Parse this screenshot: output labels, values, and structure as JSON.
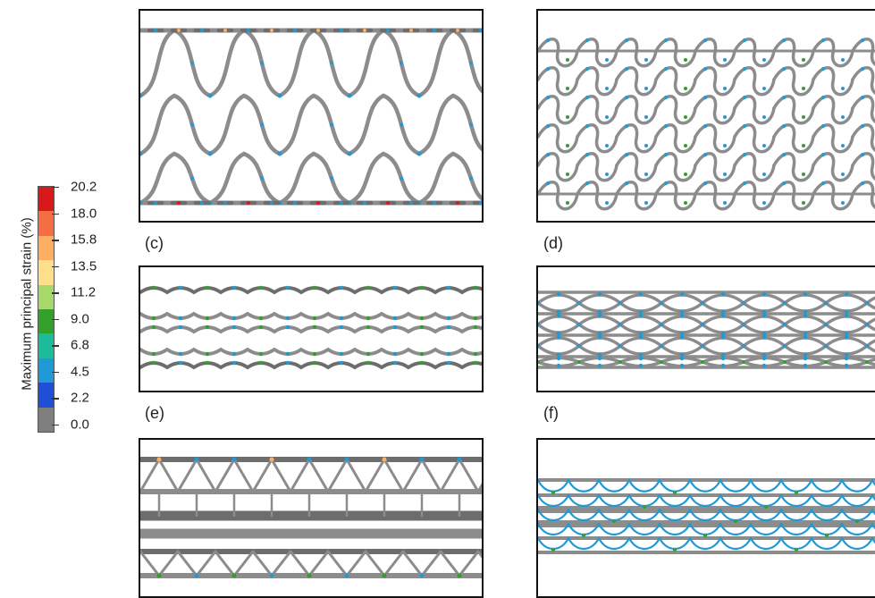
{
  "legend": {
    "title": "Maximum principal strain (%)",
    "ticks": [
      "20.2",
      "18.0",
      "15.8",
      "13.5",
      "11.2",
      "9.0",
      "6.8",
      "4.5",
      "2.2",
      "0.0"
    ],
    "colors": [
      "#d7191c",
      "#f46d43",
      "#fdae61",
      "#fee08b",
      "#a6d96a",
      "#33a02c",
      "#1abc9c",
      "#1f9ad6",
      "#1f4fd6",
      "#7f7f7f"
    ]
  },
  "panels": {
    "c": {
      "label": "(c)"
    },
    "d": {
      "label": "(d)"
    },
    "e": {
      "label": "(e)"
    },
    "f": {
      "label": "(f)"
    }
  },
  "colors": {
    "strut": "#8c8c8c",
    "strut_dark": "#6d6d6d",
    "strain_low": "#1f9ad6",
    "strain_mid": "#33a02c",
    "strain_high": "#fdae61",
    "strain_peak": "#d7191c"
  }
}
